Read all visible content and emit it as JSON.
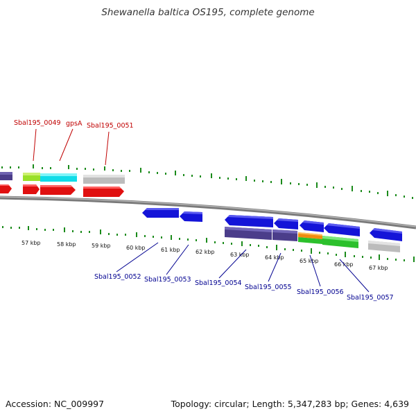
{
  "title": "Shewanella baltica OS195, complete genome",
  "footer": {
    "accession": "Accession: NC_009997",
    "topology": "Topology: circular; Length: 5,347,283 bp; Genes: 4,639"
  },
  "colors": {
    "backbone": "#888888",
    "tick": "#1a8a1a",
    "label_top": "#c00000",
    "label_bottom": "#000090"
  },
  "kbp_labels": [
    "57 kbp",
    "58 kbp",
    "59 kbp",
    "60 kbp",
    "61 kbp",
    "62 kbp",
    "63 kbp",
    "64 kbp",
    "65 kbp",
    "66 kbp",
    "67 kbp"
  ],
  "top_gene_labels": [
    "Sbal195_0049",
    "gpsA",
    "Sbal195_0051"
  ],
  "bottom_gene_labels": [
    "Sbal195_0052",
    "Sbal195_0053",
    "Sbal195_0054",
    "Sbal195_0055",
    "Sbal195_0056",
    "Sbal195_0057"
  ]
}
